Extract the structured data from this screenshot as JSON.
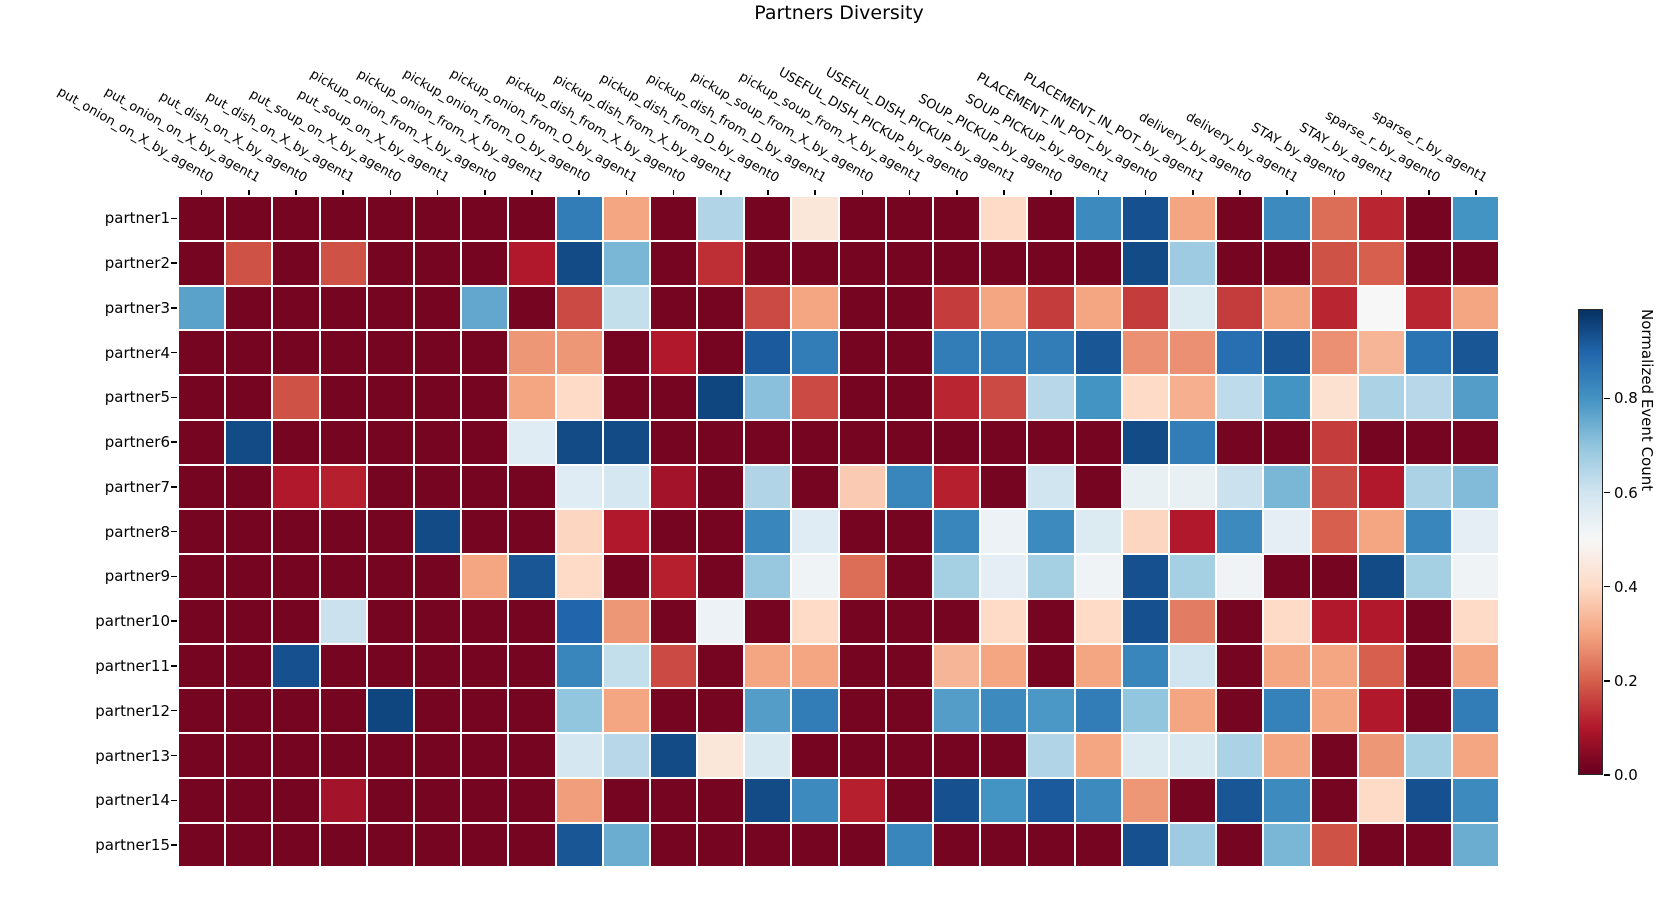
{
  "figure": {
    "title": "Partners Diversity"
  },
  "chart_data": {
    "type": "heatmap",
    "title": "Partners Diversity",
    "rows": [
      "partner1",
      "partner2",
      "partner3",
      "partner4",
      "partner5",
      "partner6",
      "partner7",
      "partner8",
      "partner9",
      "partner10",
      "partner11",
      "partner12",
      "partner13",
      "partner14",
      "partner15"
    ],
    "columns": [
      "put_onion_on_X_by_agent0",
      "put_onion_on_X_by_agent1",
      "put_dish_on_X_by_agent0",
      "put_dish_on_X_by_agent1",
      "put_soup_on_X_by_agent0",
      "put_soup_on_X_by_agent1",
      "pickup_onion_from_X_by_agent0",
      "pickup_onion_from_X_by_agent1",
      "pickup_onion_from_O_by_agent0",
      "pickup_onion_from_O_by_agent1",
      "pickup_dish_from_X_by_agent0",
      "pickup_dish_from_X_by_agent1",
      "pickup_dish_from_D_by_agent0",
      "pickup_dish_from_D_by_agent1",
      "pickup_soup_from_X_by_agent0",
      "pickup_soup_from_X_by_agent1",
      "USEFUL_DISH_PICKUP_by_agent0",
      "USEFUL_DISH_PICKUP_by_agent1",
      "SOUP_PICKUP_by_agent0",
      "SOUP_PICKUP_by_agent1",
      "PLACEMENT_IN_POT_by_agent0",
      "PLACEMENT_IN_POT_by_agent1",
      "delivery_by_agent0",
      "delivery_by_agent1",
      "STAY_by_agent0",
      "STAY_by_agent1",
      "sparse_r_by_agent0",
      "sparse_r_by_agent1"
    ],
    "values": [
      [
        0.02,
        0.02,
        0.02,
        0.02,
        0.02,
        0.02,
        0.02,
        0.02,
        0.85,
        0.3,
        0.02,
        0.65,
        0.02,
        0.44,
        0.02,
        0.02,
        0.02,
        0.4,
        0.02,
        0.82,
        0.94,
        0.3,
        0.02,
        0.82,
        0.22,
        0.12,
        0.02,
        0.8
      ],
      [
        0.02,
        0.18,
        0.02,
        0.18,
        0.02,
        0.02,
        0.02,
        0.1,
        0.95,
        0.73,
        0.02,
        0.13,
        0.02,
        0.02,
        0.02,
        0.02,
        0.02,
        0.02,
        0.02,
        0.02,
        0.95,
        0.68,
        0.02,
        0.02,
        0.18,
        0.2,
        0.02,
        0.02
      ],
      [
        0.77,
        0.02,
        0.02,
        0.02,
        0.02,
        0.02,
        0.76,
        0.02,
        0.17,
        0.62,
        0.02,
        0.02,
        0.17,
        0.3,
        0.02,
        0.02,
        0.15,
        0.3,
        0.15,
        0.3,
        0.15,
        0.57,
        0.15,
        0.3,
        0.12,
        0.5,
        0.12,
        0.3
      ],
      [
        0.02,
        0.02,
        0.02,
        0.02,
        0.02,
        0.02,
        0.02,
        0.28,
        0.28,
        0.02,
        0.1,
        0.02,
        0.92,
        0.85,
        0.02,
        0.02,
        0.85,
        0.85,
        0.85,
        0.93,
        0.27,
        0.27,
        0.88,
        0.93,
        0.27,
        0.33,
        0.87,
        0.93
      ],
      [
        0.02,
        0.02,
        0.18,
        0.02,
        0.02,
        0.02,
        0.02,
        0.3,
        0.4,
        0.02,
        0.02,
        0.96,
        0.71,
        0.17,
        0.02,
        0.02,
        0.12,
        0.17,
        0.64,
        0.8,
        0.4,
        0.32,
        0.63,
        0.8,
        0.42,
        0.66,
        0.64,
        0.78
      ],
      [
        0.02,
        0.95,
        0.02,
        0.02,
        0.02,
        0.02,
        0.02,
        0.56,
        0.95,
        0.95,
        0.02,
        0.02,
        0.02,
        0.02,
        0.02,
        0.02,
        0.02,
        0.02,
        0.02,
        0.02,
        0.95,
        0.85,
        0.02,
        0.02,
        0.15,
        0.02,
        0.02,
        0.02
      ],
      [
        0.02,
        0.02,
        0.1,
        0.11,
        0.02,
        0.02,
        0.02,
        0.02,
        0.56,
        0.59,
        0.08,
        0.02,
        0.65,
        0.02,
        0.37,
        0.83,
        0.11,
        0.02,
        0.6,
        0.02,
        0.54,
        0.54,
        0.61,
        0.73,
        0.17,
        0.1,
        0.66,
        0.72
      ],
      [
        0.02,
        0.02,
        0.02,
        0.02,
        0.02,
        0.95,
        0.02,
        0.02,
        0.39,
        0.1,
        0.02,
        0.02,
        0.83,
        0.56,
        0.02,
        0.02,
        0.83,
        0.53,
        0.82,
        0.57,
        0.39,
        0.1,
        0.82,
        0.55,
        0.2,
        0.3,
        0.83,
        0.55
      ],
      [
        0.02,
        0.02,
        0.02,
        0.02,
        0.02,
        0.02,
        0.3,
        0.93,
        0.4,
        0.02,
        0.11,
        0.02,
        0.69,
        0.52,
        0.22,
        0.02,
        0.67,
        0.55,
        0.67,
        0.52,
        0.94,
        0.67,
        0.52,
        0.02,
        0.02,
        0.95,
        0.67,
        0.52
      ],
      [
        0.02,
        0.02,
        0.02,
        0.61,
        0.02,
        0.02,
        0.02,
        0.02,
        0.9,
        0.28,
        0.02,
        0.53,
        0.02,
        0.4,
        0.02,
        0.02,
        0.02,
        0.4,
        0.02,
        0.4,
        0.94,
        0.24,
        0.02,
        0.4,
        0.1,
        0.1,
        0.02,
        0.4
      ],
      [
        0.02,
        0.02,
        0.94,
        0.02,
        0.02,
        0.02,
        0.02,
        0.02,
        0.83,
        0.62,
        0.17,
        0.02,
        0.3,
        0.3,
        0.02,
        0.02,
        0.33,
        0.3,
        0.02,
        0.3,
        0.83,
        0.6,
        0.02,
        0.3,
        0.3,
        0.2,
        0.02,
        0.3
      ],
      [
        0.02,
        0.02,
        0.02,
        0.02,
        0.96,
        0.02,
        0.02,
        0.02,
        0.7,
        0.3,
        0.02,
        0.02,
        0.78,
        0.85,
        0.02,
        0.02,
        0.78,
        0.82,
        0.79,
        0.85,
        0.7,
        0.3,
        0.02,
        0.84,
        0.3,
        0.1,
        0.02,
        0.85
      ],
      [
        0.02,
        0.02,
        0.02,
        0.02,
        0.02,
        0.02,
        0.02,
        0.02,
        0.59,
        0.64,
        0.95,
        0.44,
        0.58,
        0.02,
        0.02,
        0.02,
        0.02,
        0.02,
        0.65,
        0.3,
        0.57,
        0.58,
        0.66,
        0.3,
        0.02,
        0.28,
        0.67,
        0.3
      ],
      [
        0.02,
        0.02,
        0.02,
        0.08,
        0.02,
        0.02,
        0.02,
        0.02,
        0.29,
        0.02,
        0.02,
        0.02,
        0.95,
        0.82,
        0.11,
        0.02,
        0.94,
        0.8,
        0.92,
        0.82,
        0.28,
        0.02,
        0.93,
        0.82,
        0.02,
        0.4,
        0.94,
        0.82
      ],
      [
        0.02,
        0.02,
        0.02,
        0.02,
        0.02,
        0.02,
        0.02,
        0.02,
        0.93,
        0.75,
        0.02,
        0.02,
        0.02,
        0.02,
        0.02,
        0.83,
        0.02,
        0.02,
        0.02,
        0.02,
        0.94,
        0.68,
        0.02,
        0.73,
        0.18,
        0.02,
        0.02,
        0.75
      ]
    ],
    "colorbar": {
      "label": "Normalized Event Count",
      "ticks": [
        "0.0",
        "0.2",
        "0.4",
        "0.6",
        "0.8"
      ],
      "tick_values": [
        0.0,
        0.2,
        0.4,
        0.6,
        0.8
      ],
      "vmin": 0.0,
      "vmax": 0.99,
      "position": "right"
    },
    "colormap": {
      "name": "RdBu",
      "stops": [
        {
          "v": 0.0,
          "hex": "#67001f"
        },
        {
          "v": 0.1,
          "hex": "#b2182b"
        },
        {
          "v": 0.2,
          "hex": "#d6604d"
        },
        {
          "v": 0.3,
          "hex": "#f4a582"
        },
        {
          "v": 0.4,
          "hex": "#fddbc7"
        },
        {
          "v": 0.5,
          "hex": "#f7f7f7"
        },
        {
          "v": 0.6,
          "hex": "#d1e5f0"
        },
        {
          "v": 0.7,
          "hex": "#92c5de"
        },
        {
          "v": 0.8,
          "hex": "#4393c3"
        },
        {
          "v": 0.9,
          "hex": "#2166ac"
        },
        {
          "v": 1.0,
          "hex": "#053061"
        }
      ]
    },
    "axes": {
      "x_tick_rotation_deg": 30,
      "grid_lines": "white",
      "xlabel": "",
      "ylabel": ""
    }
  }
}
